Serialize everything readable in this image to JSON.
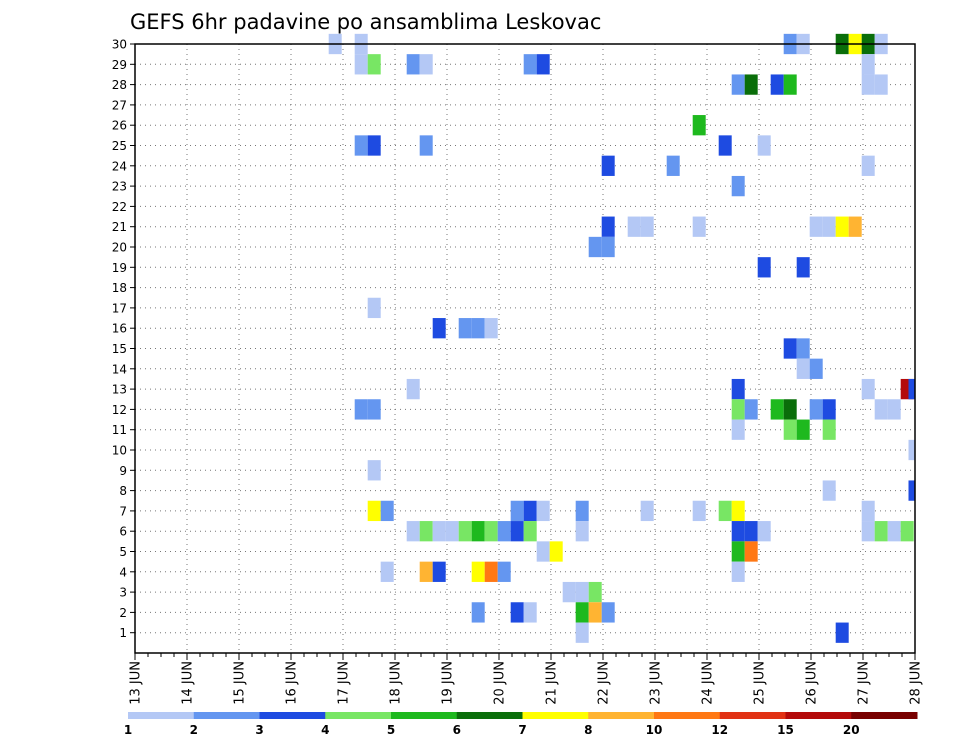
{
  "chart_data": {
    "type": "heatmap",
    "title": "GEFS 6hr padavine po ansamblima Leskovac",
    "x_labels": [
      "13 JUN",
      "14 JUN",
      "15 JUN",
      "16 JUN",
      "17 JUN",
      "18 JUN",
      "19 JUN",
      "20 JUN",
      "21 JUN",
      "22 JUN",
      "23 JUN",
      "24 JUN",
      "25 JUN",
      "26 JUN",
      "27 JUN",
      "28 JUN"
    ],
    "y_labels": [
      "1",
      "2",
      "3",
      "4",
      "5",
      "6",
      "7",
      "8",
      "9",
      "10",
      "11",
      "12",
      "13",
      "14",
      "15",
      "16",
      "17",
      "18",
      "19",
      "20",
      "21",
      "22",
      "23",
      "24",
      "25",
      "26",
      "27",
      "28",
      "29",
      "30"
    ],
    "y_range": [
      0,
      30
    ],
    "x_range_days": [
      0,
      15
    ],
    "grid": true,
    "legend": {
      "position": "bottom",
      "levels": [
        "1",
        "2",
        "3",
        "4",
        "5",
        "6",
        "7",
        "8",
        "10",
        "12",
        "15",
        "20"
      ],
      "colors": [
        "#b4c8f5",
        "#6496f0",
        "#1e4be1",
        "#78e664",
        "#1eb91e",
        "#0a6e0a",
        "#ffff00",
        "#ffb432",
        "#ff7814",
        "#e13214",
        "#b40a0a",
        "#780000"
      ]
    },
    "cells_note": "each cell: [x in days from 13 JUN, member number, color level index]",
    "cells": [
      [
        3.85,
        30,
        0
      ],
      [
        4.35,
        30,
        0
      ],
      [
        12.6,
        30,
        1
      ],
      [
        12.85,
        30,
        0
      ],
      [
        13.6,
        30,
        5
      ],
      [
        13.85,
        30,
        6
      ],
      [
        14.1,
        30,
        5
      ],
      [
        14.35,
        30,
        0
      ],
      [
        4.35,
        29,
        0
      ],
      [
        4.6,
        29,
        3
      ],
      [
        5.35,
        29,
        1
      ],
      [
        5.6,
        29,
        0
      ],
      [
        7.6,
        29,
        1
      ],
      [
        7.85,
        29,
        2
      ],
      [
        14.1,
        29,
        0
      ],
      [
        11.6,
        28,
        1
      ],
      [
        11.85,
        28,
        5
      ],
      [
        12.35,
        28,
        2
      ],
      [
        12.6,
        28,
        4
      ],
      [
        14.1,
        28,
        0
      ],
      [
        14.35,
        28,
        0
      ],
      [
        10.85,
        26,
        4
      ],
      [
        4.35,
        25,
        1
      ],
      [
        4.6,
        25,
        2
      ],
      [
        5.6,
        25,
        1
      ],
      [
        11.35,
        25,
        2
      ],
      [
        12.1,
        25,
        0
      ],
      [
        9.1,
        24,
        2
      ],
      [
        10.35,
        24,
        1
      ],
      [
        14.1,
        24,
        0
      ],
      [
        11.6,
        23,
        1
      ],
      [
        9.1,
        21,
        2
      ],
      [
        9.6,
        21,
        0
      ],
      [
        9.85,
        21,
        0
      ],
      [
        10.85,
        21,
        0
      ],
      [
        13.1,
        21,
        0
      ],
      [
        13.35,
        21,
        0
      ],
      [
        13.6,
        21,
        6
      ],
      [
        13.85,
        21,
        7
      ],
      [
        8.85,
        20,
        1
      ],
      [
        9.1,
        20,
        1
      ],
      [
        12.1,
        19,
        2
      ],
      [
        12.85,
        19,
        2
      ],
      [
        4.6,
        17,
        0
      ],
      [
        5.85,
        16,
        2
      ],
      [
        6.35,
        16,
        1
      ],
      [
        6.6,
        16,
        1
      ],
      [
        6.85,
        16,
        0
      ],
      [
        12.6,
        15,
        2
      ],
      [
        12.85,
        15,
        1
      ],
      [
        12.85,
        14,
        0
      ],
      [
        13.1,
        14,
        1
      ],
      [
        5.35,
        13,
        0
      ],
      [
        11.6,
        13,
        2
      ],
      [
        14.1,
        13,
        0
      ],
      [
        14.85,
        13,
        10
      ],
      [
        15.0,
        13,
        2
      ],
      [
        4.35,
        12,
        1
      ],
      [
        4.6,
        12,
        1
      ],
      [
        11.6,
        12,
        3
      ],
      [
        11.85,
        12,
        1
      ],
      [
        12.35,
        12,
        4
      ],
      [
        12.6,
        12,
        5
      ],
      [
        13.1,
        12,
        1
      ],
      [
        13.35,
        12,
        2
      ],
      [
        14.35,
        12,
        0
      ],
      [
        14.6,
        12,
        0
      ],
      [
        11.6,
        11,
        0
      ],
      [
        12.6,
        11,
        3
      ],
      [
        12.85,
        11,
        4
      ],
      [
        13.35,
        11,
        3
      ],
      [
        15.0,
        10,
        0
      ],
      [
        4.6,
        9,
        0
      ],
      [
        13.35,
        8,
        0
      ],
      [
        15.0,
        8,
        2
      ],
      [
        4.6,
        7,
        6
      ],
      [
        4.85,
        7,
        1
      ],
      [
        7.35,
        7,
        1
      ],
      [
        7.6,
        7,
        2
      ],
      [
        7.85,
        7,
        0
      ],
      [
        8.6,
        7,
        1
      ],
      [
        9.85,
        7,
        0
      ],
      [
        10.85,
        7,
        0
      ],
      [
        11.35,
        7,
        3
      ],
      [
        11.6,
        7,
        6
      ],
      [
        14.1,
        7,
        0
      ],
      [
        5.35,
        6,
        0
      ],
      [
        5.6,
        6,
        3
      ],
      [
        5.85,
        6,
        0
      ],
      [
        6.1,
        6,
        0
      ],
      [
        6.35,
        6,
        3
      ],
      [
        6.6,
        6,
        4
      ],
      [
        6.85,
        6,
        3
      ],
      [
        7.1,
        6,
        1
      ],
      [
        7.35,
        6,
        2
      ],
      [
        7.6,
        6,
        3
      ],
      [
        8.6,
        6,
        0
      ],
      [
        11.6,
        6,
        2
      ],
      [
        11.85,
        6,
        2
      ],
      [
        12.1,
        6,
        0
      ],
      [
        14.1,
        6,
        0
      ],
      [
        14.35,
        6,
        3
      ],
      [
        14.6,
        6,
        0
      ],
      [
        14.85,
        6,
        3
      ],
      [
        7.85,
        5,
        0
      ],
      [
        8.1,
        5,
        6
      ],
      [
        11.6,
        5,
        4
      ],
      [
        11.85,
        5,
        8
      ],
      [
        4.85,
        4,
        0
      ],
      [
        5.6,
        4,
        7
      ],
      [
        5.85,
        4,
        2
      ],
      [
        6.6,
        4,
        6
      ],
      [
        6.85,
        4,
        8
      ],
      [
        7.1,
        4,
        1
      ],
      [
        11.6,
        4,
        0
      ],
      [
        8.35,
        3,
        0
      ],
      [
        8.6,
        3,
        0
      ],
      [
        8.85,
        3,
        3
      ],
      [
        6.6,
        2,
        1
      ],
      [
        7.35,
        2,
        2
      ],
      [
        7.6,
        2,
        0
      ],
      [
        8.6,
        2,
        4
      ],
      [
        8.85,
        2,
        7
      ],
      [
        9.1,
        2,
        1
      ],
      [
        8.6,
        1,
        0
      ],
      [
        13.6,
        1,
        2
      ]
    ]
  }
}
